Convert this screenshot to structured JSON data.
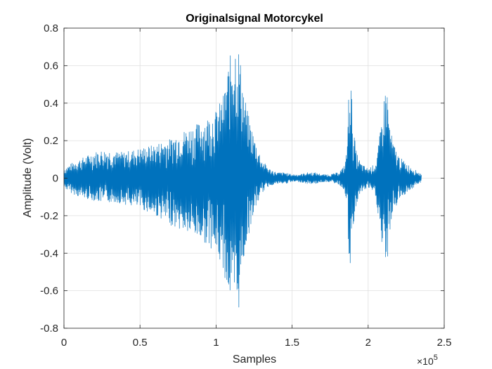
{
  "chart_data": {
    "type": "line",
    "title": "Originalsignal Motorcykel",
    "xlabel": "Samples",
    "ylabel": "Amplitude (Volt)",
    "x_exponent_base": "×10",
    "x_exponent_power": "5",
    "xlim": [
      0,
      250000
    ],
    "ylim": [
      -0.8,
      0.8
    ],
    "x_ticks": [
      0,
      50000,
      100000,
      150000,
      200000,
      250000
    ],
    "x_tick_labels": [
      "0",
      "0.5",
      "1",
      "1.5",
      "2",
      "2.5"
    ],
    "y_ticks": [
      -0.8,
      -0.6,
      -0.4,
      -0.2,
      0,
      0.2,
      0.4,
      0.6,
      0.8
    ],
    "y_tick_labels": [
      "-0.8",
      "-0.6",
      "-0.4",
      "-0.2",
      "0",
      "0.2",
      "0.4",
      "0.6",
      "0.8"
    ],
    "grid": true,
    "legend": "none",
    "line_color": "#0072BD",
    "series": [
      {
        "x": [
          0,
          5000,
          10000,
          15000,
          20000,
          25000,
          30000,
          35000,
          40000,
          45000,
          50000,
          55000,
          60000,
          65000,
          70000,
          75000,
          80000,
          85000,
          90000,
          95000,
          100000,
          105000,
          108000,
          111000,
          113000,
          115000,
          117000,
          120000,
          125000,
          130000,
          135000,
          140000,
          145000,
          150000,
          155000,
          160000,
          165000,
          170000,
          175000,
          180000,
          184000,
          186000,
          188000,
          190000,
          192000,
          195000,
          200000,
          205000,
          208000,
          210000,
          212000,
          214000,
          216000,
          220000,
          225000,
          230000,
          235000
        ],
        "upper": [
          0.05,
          0.08,
          0.1,
          0.12,
          0.14,
          0.15,
          0.15,
          0.14,
          0.14,
          0.15,
          0.16,
          0.17,
          0.18,
          0.2,
          0.21,
          0.24,
          0.26,
          0.28,
          0.3,
          0.33,
          0.36,
          0.45,
          0.6,
          0.72,
          0.73,
          0.7,
          0.55,
          0.38,
          0.22,
          0.1,
          0.05,
          0.03,
          0.03,
          0.02,
          0.02,
          0.03,
          0.03,
          0.02,
          0.02,
          0.03,
          0.06,
          0.15,
          0.64,
          0.3,
          0.15,
          0.08,
          0.05,
          0.08,
          0.25,
          0.4,
          0.53,
          0.3,
          0.2,
          0.12,
          0.08,
          0.05,
          0.02
        ],
        "lower": [
          -0.05,
          -0.08,
          -0.1,
          -0.11,
          -0.12,
          -0.13,
          -0.13,
          -0.13,
          -0.14,
          -0.15,
          -0.16,
          -0.18,
          -0.2,
          -0.22,
          -0.25,
          -0.27,
          -0.29,
          -0.31,
          -0.33,
          -0.36,
          -0.4,
          -0.5,
          -0.62,
          -0.7,
          -0.73,
          -0.7,
          -0.5,
          -0.35,
          -0.18,
          -0.08,
          -0.04,
          -0.03,
          -0.03,
          -0.02,
          -0.02,
          -0.03,
          -0.03,
          -0.02,
          -0.02,
          -0.03,
          -0.06,
          -0.15,
          -0.57,
          -0.3,
          -0.15,
          -0.08,
          -0.05,
          -0.1,
          -0.3,
          -0.45,
          -0.5,
          -0.3,
          -0.2,
          -0.12,
          -0.08,
          -0.05,
          -0.02
        ]
      }
    ]
  }
}
